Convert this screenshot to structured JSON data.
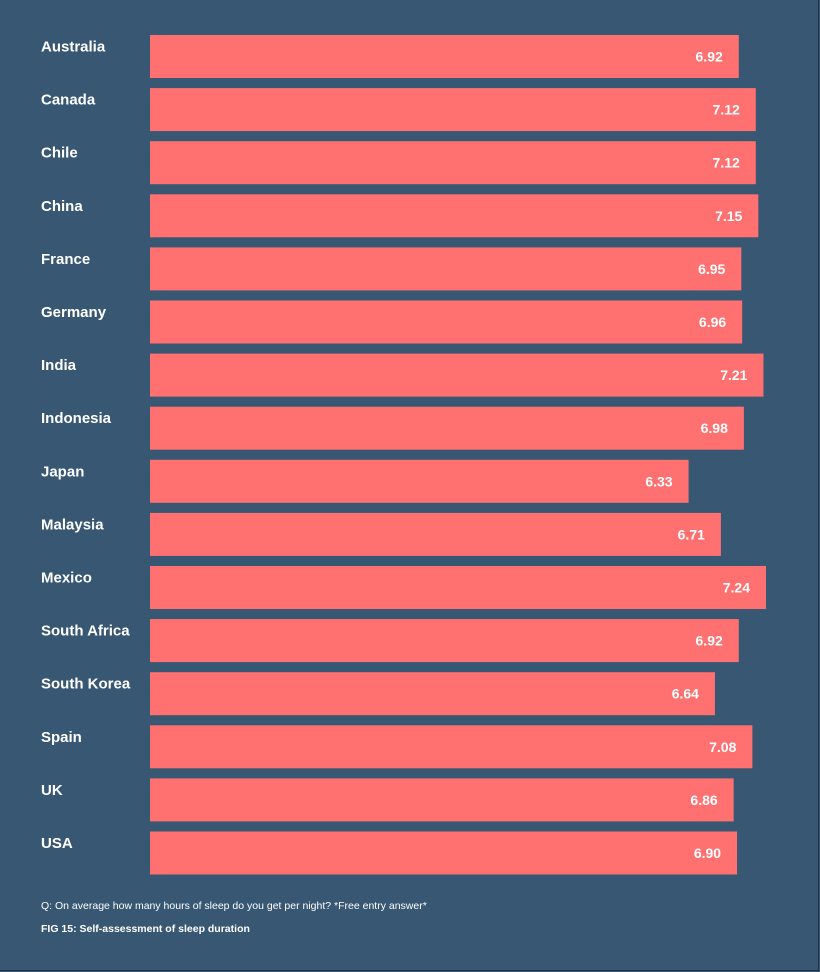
{
  "colors": {
    "background": "#375773",
    "bar": "#ff7070",
    "text": "#ffffff"
  },
  "chart_data": {
    "type": "bar",
    "orientation": "horizontal",
    "categories": [
      "Australia",
      "Canada",
      "Chile",
      "China",
      "France",
      "Germany",
      "India",
      "Indonesia",
      "Japan",
      "Malaysia",
      "Mexico",
      "South Africa",
      "South Korea",
      "Spain",
      "UK",
      "USA"
    ],
    "values": [
      6.92,
      7.12,
      7.12,
      7.15,
      6.95,
      6.96,
      7.21,
      6.98,
      6.33,
      6.71,
      7.24,
      6.92,
      6.64,
      7.08,
      6.86,
      6.9
    ],
    "value_labels": [
      "6.92",
      "7.12",
      "7.12",
      "7.15",
      "6.95",
      "6.96",
      "7.21",
      "6.98",
      "6.33",
      "6.71",
      "7.24",
      "6.92",
      "6.64",
      "7.08",
      "6.86",
      "6.90"
    ],
    "xlim": [
      0,
      7.24
    ],
    "grid": false,
    "legend": "none"
  },
  "footer": {
    "question": "Q: On average how many hours of sleep do you get per night? *Free entry answer*",
    "caption": "FIG 15: Self-assessment of sleep duration"
  }
}
